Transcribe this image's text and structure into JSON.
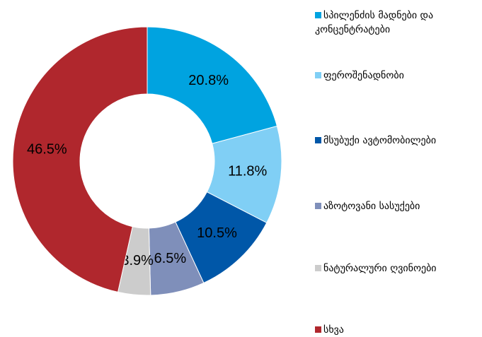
{
  "chart_data": {
    "type": "donut",
    "categories": [
      "სპილენძის მადნები და კონცენტრატები",
      "ფეროშენადნობი",
      "მსუბუქი ავტომობილები",
      "აზოტოვანი სასუქები",
      "ნატურალური ღვინოები",
      "სხვა"
    ],
    "values": [
      20.8,
      11.8,
      10.5,
      6.5,
      3.9,
      46.5
    ],
    "value_labels": [
      "20.8%",
      "11.8%",
      "10.5%",
      "6.5%",
      "3.9%",
      "46.5%"
    ],
    "colors": [
      "#00a3e0",
      "#80cff5",
      "#0057a8",
      "#7f8fba",
      "#cccccc",
      "#b0272d"
    ],
    "legend": "right"
  }
}
